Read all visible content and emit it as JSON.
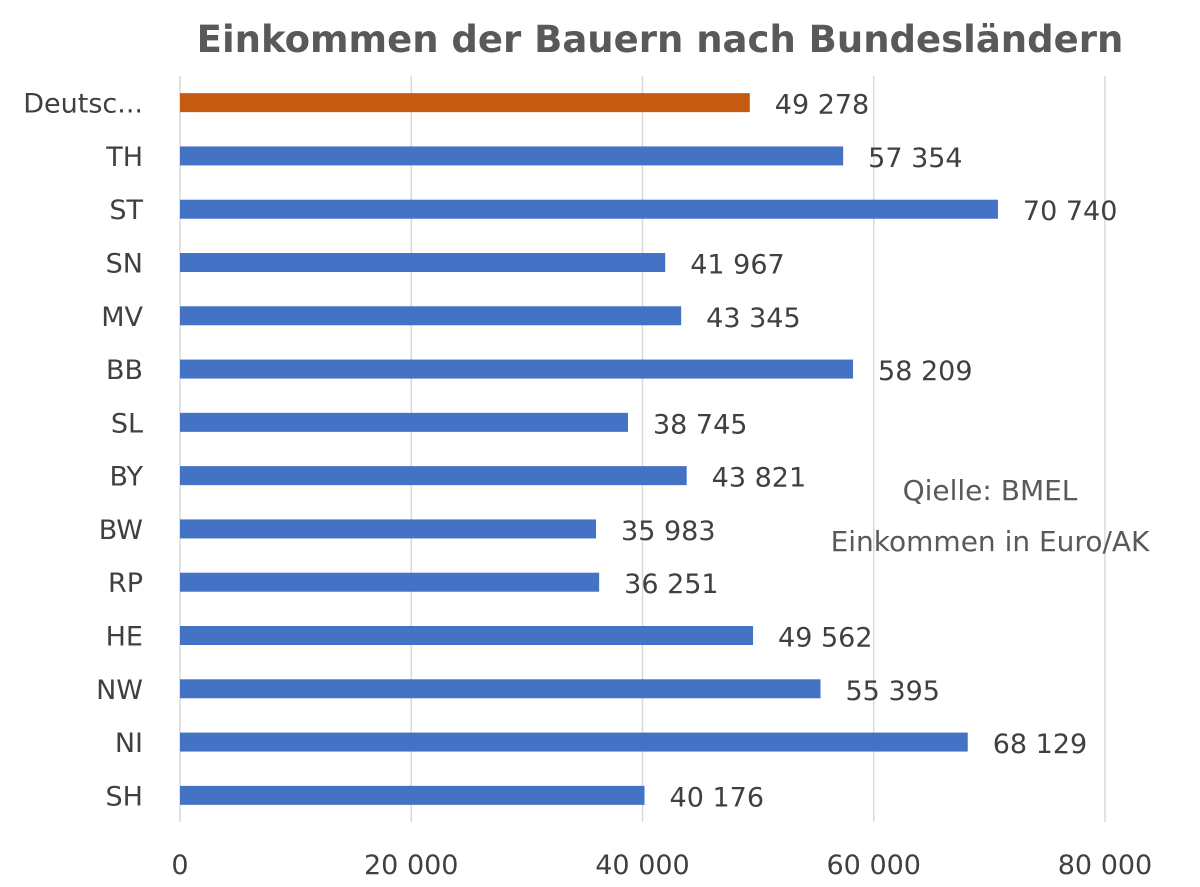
{
  "chart_data": {
    "type": "bar",
    "orientation": "horizontal",
    "title": "Einkommen  der Bauern nach Bundesländern",
    "categories": [
      "Deutsc...",
      "TH",
      "ST",
      "SN",
      "MV",
      "BB",
      "SL",
      "BY",
      "BW",
      "RP",
      "HE",
      "NW",
      "NI",
      "SH"
    ],
    "values": [
      49278,
      57354,
      70740,
      41967,
      43345,
      58209,
      38745,
      43821,
      35983,
      36251,
      49562,
      55395,
      68129,
      40176
    ],
    "data_labels": [
      "49 278",
      "57 354",
      "70 740",
      "41 967",
      "43 345",
      "58 209",
      "38 745",
      "43 821",
      "35 983",
      "36 251",
      "49 562",
      "55 395",
      "68 129",
      "40 176"
    ],
    "highlight_index": 0,
    "colors": {
      "default": "#4472c4",
      "highlight": "#c55a11",
      "grid": "#d9d9d9",
      "text": "#404040"
    },
    "xlim": [
      0,
      80000
    ],
    "xticks": [
      0,
      20000,
      40000,
      60000,
      80000
    ],
    "xtick_labels": [
      "0",
      "20 000",
      "40 000",
      "60 000",
      "80 000"
    ],
    "xlabel": "",
    "ylabel": "",
    "grid": true,
    "annotations": [
      "Qielle: BMEL",
      "Einkommen in Euro/AK"
    ]
  }
}
